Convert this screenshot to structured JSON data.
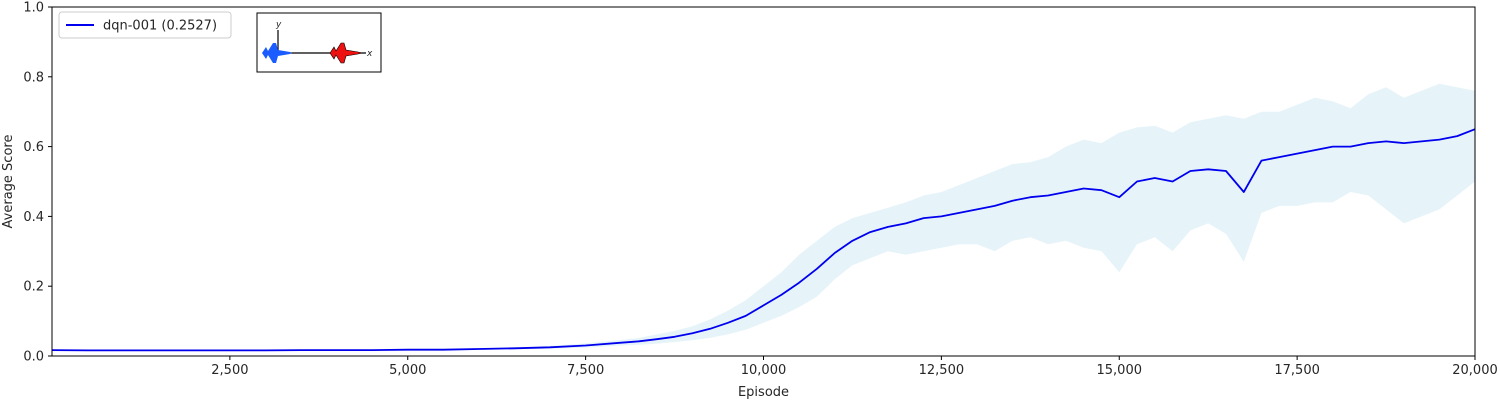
{
  "chart_data": {
    "type": "line",
    "xlabel": "Episode",
    "ylabel": "Average Score",
    "xlim": [
      0,
      20000
    ],
    "ylim": [
      0,
      1.0
    ],
    "grid": false,
    "legend_placement": "top-left",
    "x_ticks": [
      2500,
      5000,
      7500,
      10000,
      12500,
      15000,
      17500,
      20000
    ],
    "x_tick_labels": [
      "2,500",
      "5,000",
      "7,500",
      "10,000",
      "12,500",
      "15,000",
      "17,500",
      "20,000"
    ],
    "y_ticks": [
      0.0,
      0.2,
      0.4,
      0.6,
      0.8,
      1.0
    ],
    "y_tick_labels": [
      "0.0",
      "0.2",
      "0.4",
      "0.6",
      "0.8",
      "1.0"
    ],
    "series": [
      {
        "name": "dqn-001 (0.2527)",
        "color": "#0000ee",
        "band_color": "#e6f4fa",
        "x": [
          0,
          500,
          1000,
          1500,
          2000,
          2500,
          3000,
          3500,
          4000,
          4500,
          5000,
          5500,
          6000,
          6500,
          7000,
          7500,
          8000,
          8250,
          8500,
          8750,
          9000,
          9250,
          9500,
          9750,
          10000,
          10250,
          10500,
          10750,
          11000,
          11250,
          11500,
          11750,
          12000,
          12250,
          12500,
          12750,
          13000,
          13250,
          13500,
          13750,
          14000,
          14250,
          14500,
          14750,
          15000,
          15250,
          15500,
          15750,
          16000,
          16250,
          16500,
          16750,
          17000,
          17250,
          17500,
          17750,
          18000,
          18250,
          18500,
          18750,
          19000,
          19250,
          19500,
          19750,
          20000
        ],
        "y": [
          0.017,
          0.016,
          0.016,
          0.016,
          0.016,
          0.016,
          0.016,
          0.017,
          0.017,
          0.017,
          0.018,
          0.018,
          0.02,
          0.022,
          0.025,
          0.03,
          0.038,
          0.042,
          0.048,
          0.055,
          0.065,
          0.078,
          0.095,
          0.115,
          0.145,
          0.175,
          0.21,
          0.25,
          0.295,
          0.33,
          0.355,
          0.37,
          0.38,
          0.395,
          0.4,
          0.41,
          0.42,
          0.43,
          0.445,
          0.455,
          0.46,
          0.47,
          0.48,
          0.475,
          0.455,
          0.5,
          0.51,
          0.5,
          0.53,
          0.535,
          0.53,
          0.47,
          0.56,
          0.57,
          0.58,
          0.59,
          0.6,
          0.6,
          0.61,
          0.615,
          0.61,
          0.615,
          0.62,
          0.63,
          0.65
        ],
        "y_upper": [
          0.018,
          0.017,
          0.017,
          0.017,
          0.017,
          0.017,
          0.017,
          0.018,
          0.018,
          0.018,
          0.019,
          0.02,
          0.022,
          0.025,
          0.029,
          0.036,
          0.046,
          0.052,
          0.062,
          0.072,
          0.085,
          0.105,
          0.13,
          0.16,
          0.2,
          0.24,
          0.29,
          0.33,
          0.37,
          0.395,
          0.41,
          0.425,
          0.44,
          0.46,
          0.47,
          0.49,
          0.51,
          0.53,
          0.55,
          0.555,
          0.57,
          0.6,
          0.62,
          0.61,
          0.64,
          0.655,
          0.66,
          0.64,
          0.67,
          0.68,
          0.69,
          0.68,
          0.7,
          0.7,
          0.72,
          0.74,
          0.73,
          0.71,
          0.75,
          0.77,
          0.74,
          0.76,
          0.78,
          0.77,
          0.76
        ],
        "y_lower": [
          0.016,
          0.015,
          0.015,
          0.015,
          0.015,
          0.015,
          0.015,
          0.016,
          0.016,
          0.016,
          0.017,
          0.016,
          0.018,
          0.019,
          0.021,
          0.024,
          0.03,
          0.032,
          0.035,
          0.04,
          0.045,
          0.052,
          0.062,
          0.075,
          0.095,
          0.115,
          0.14,
          0.17,
          0.22,
          0.26,
          0.28,
          0.3,
          0.29,
          0.3,
          0.31,
          0.32,
          0.32,
          0.3,
          0.33,
          0.34,
          0.32,
          0.33,
          0.31,
          0.3,
          0.24,
          0.32,
          0.34,
          0.3,
          0.36,
          0.38,
          0.35,
          0.27,
          0.41,
          0.43,
          0.43,
          0.44,
          0.44,
          0.47,
          0.46,
          0.42,
          0.38,
          0.4,
          0.42,
          0.46,
          0.5
        ]
      }
    ]
  },
  "inset": {
    "y_label": "y",
    "x_label": "x",
    "blue_color": "#1a5cff",
    "red_color": "#ee1111",
    "icon": "two-jet-aircraft-diagram"
  }
}
